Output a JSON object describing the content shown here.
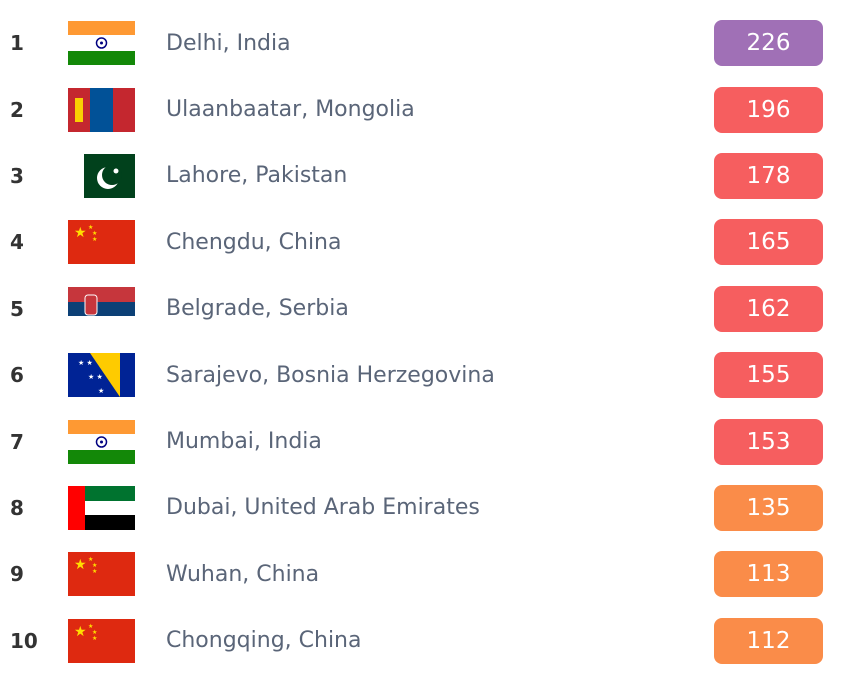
{
  "colors": {
    "very_unhealthy": "#a070b6",
    "unhealthy": "#f65e5f",
    "sensitive": "#fa8c49"
  },
  "cities": [
    {
      "rank": "1",
      "name": "Delhi, India",
      "flag": "india",
      "aqi": "226",
      "level": "very_unhealthy"
    },
    {
      "rank": "2",
      "name": "Ulaanbaatar, Mongolia",
      "flag": "mongolia",
      "aqi": "196",
      "level": "unhealthy"
    },
    {
      "rank": "3",
      "name": "Lahore, Pakistan",
      "flag": "pakistan",
      "aqi": "178",
      "level": "unhealthy"
    },
    {
      "rank": "4",
      "name": "Chengdu, China",
      "flag": "china",
      "aqi": "165",
      "level": "unhealthy"
    },
    {
      "rank": "5",
      "name": "Belgrade, Serbia",
      "flag": "serbia",
      "aqi": "162",
      "level": "unhealthy"
    },
    {
      "rank": "6",
      "name": "Sarajevo, Bosnia Herzegovina",
      "flag": "bosnia",
      "aqi": "155",
      "level": "unhealthy"
    },
    {
      "rank": "7",
      "name": "Mumbai, India",
      "flag": "india",
      "aqi": "153",
      "level": "unhealthy"
    },
    {
      "rank": "8",
      "name": "Dubai, United Arab Emirates",
      "flag": "uae",
      "aqi": "135",
      "level": "sensitive"
    },
    {
      "rank": "9",
      "name": "Wuhan, China",
      "flag": "china",
      "aqi": "113",
      "level": "sensitive"
    },
    {
      "rank": "10",
      "name": "Chongqing, China",
      "flag": "china",
      "aqi": "112",
      "level": "sensitive"
    }
  ]
}
